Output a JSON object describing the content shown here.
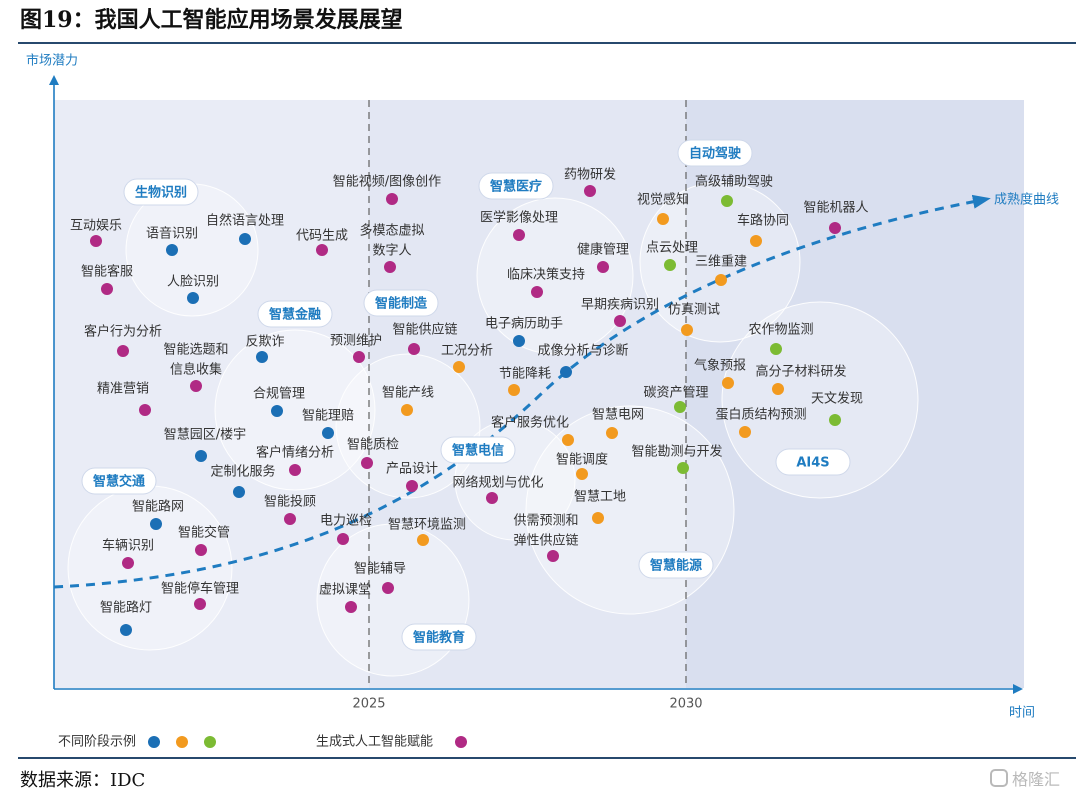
{
  "header": {
    "title": "图19：我国人工智能应用场景发展展望"
  },
  "footer": {
    "source": "数据来源：IDC",
    "watermark": "格隆汇"
  },
  "colors": {
    "blue": "#1b6fb5",
    "orange": "#f29a1f",
    "green": "#7cbb33",
    "magenta": "#b02a84",
    "accent": "#1f7cc1",
    "zone1": "#e9ecf6",
    "zone2": "#e3e7f3",
    "zone3": "#d9dfef"
  },
  "chart_data": {
    "type": "scatter",
    "ylabel": "市场潜力",
    "xlabel": "时间",
    "x_ticks": [
      "2025",
      "2030"
    ],
    "curve_label": "成熟度曲线",
    "legend": {
      "stages_label": "不同阶段示例",
      "genai_label": "生成式人工智能赋能"
    },
    "clusters": [
      "生物识别",
      "智慧金融",
      "智慧交通",
      "智能制造",
      "智能教育",
      "智慧医疗",
      "智慧电信",
      "自动驾驶",
      "智慧能源",
      "AI4S"
    ],
    "points": [
      {
        "label": "互动娱乐",
        "cat": "magenta"
      },
      {
        "label": "智能客服",
        "cat": "magenta"
      },
      {
        "label": "语音识别",
        "cat": "blue"
      },
      {
        "label": "自然语言处理",
        "cat": "blue"
      },
      {
        "label": "人脸识别",
        "cat": "blue"
      },
      {
        "label": "代码生成",
        "cat": "magenta"
      },
      {
        "label": "智能视频/图像创作",
        "cat": "magenta"
      },
      {
        "label": "多模态虚拟数字人",
        "cat": "magenta"
      },
      {
        "label": "客户行为分析",
        "cat": "magenta"
      },
      {
        "label": "智能选题和信息收集",
        "cat": "magenta"
      },
      {
        "label": "反欺诈",
        "cat": "blue"
      },
      {
        "label": "精准营销",
        "cat": "magenta"
      },
      {
        "label": "合规管理",
        "cat": "blue"
      },
      {
        "label": "智能理赔",
        "cat": "blue"
      },
      {
        "label": "智慧园区/楼宇",
        "cat": "blue"
      },
      {
        "label": "定制化服务",
        "cat": "blue"
      },
      {
        "label": "客户情绪分析",
        "cat": "magenta"
      },
      {
        "label": "智能投顾",
        "cat": "magenta"
      },
      {
        "label": "智能路网",
        "cat": "blue"
      },
      {
        "label": "智能交管",
        "cat": "magenta"
      },
      {
        "label": "车辆识别",
        "cat": "magenta"
      },
      {
        "label": "智能停车管理",
        "cat": "magenta"
      },
      {
        "label": "智能路灯",
        "cat": "blue"
      },
      {
        "label": "预测维护",
        "cat": "magenta"
      },
      {
        "label": "智能供应链",
        "cat": "magenta"
      },
      {
        "label": "工况分析",
        "cat": "orange"
      },
      {
        "label": "智能产线",
        "cat": "orange"
      },
      {
        "label": "智能质检",
        "cat": "magenta"
      },
      {
        "label": "产品设计",
        "cat": "magenta"
      },
      {
        "label": "电力巡检",
        "cat": "magenta"
      },
      {
        "label": "智慧环境监测",
        "cat": "orange"
      },
      {
        "label": "智能辅导",
        "cat": "magenta"
      },
      {
        "label": "虚拟课堂",
        "cat": "magenta"
      },
      {
        "label": "药物研发",
        "cat": "magenta"
      },
      {
        "label": "医学影像处理",
        "cat": "magenta"
      },
      {
        "label": "健康管理",
        "cat": "magenta"
      },
      {
        "label": "临床决策支持",
        "cat": "magenta"
      },
      {
        "label": "早期疾病识别",
        "cat": "magenta"
      },
      {
        "label": "电子病历助手",
        "cat": "blue"
      },
      {
        "label": "成像分析与诊断",
        "cat": "blue"
      },
      {
        "label": "节能降耗",
        "cat": "orange"
      },
      {
        "label": "客户服务优化",
        "cat": "orange"
      },
      {
        "label": "智慧电网",
        "cat": "orange"
      },
      {
        "label": "智能调度",
        "cat": "orange"
      },
      {
        "label": "网络规划与优化",
        "cat": "magenta"
      },
      {
        "label": "智慧工地",
        "cat": "orange"
      },
      {
        "label": "供需预测和弹性供应链",
        "cat": "magenta"
      },
      {
        "label": "视觉感知",
        "cat": "orange"
      },
      {
        "label": "高级辅助驾驶",
        "cat": "green"
      },
      {
        "label": "车路协同",
        "cat": "orange"
      },
      {
        "label": "点云处理",
        "cat": "green"
      },
      {
        "label": "三维重建",
        "cat": "orange"
      },
      {
        "label": "仿真测试",
        "cat": "orange"
      },
      {
        "label": "智能机器人",
        "cat": "magenta"
      },
      {
        "label": "农作物监测",
        "cat": "green"
      },
      {
        "label": "气象预报",
        "cat": "orange"
      },
      {
        "label": "高分子材料研发",
        "cat": "orange"
      },
      {
        "label": "碳资产管理",
        "cat": "green"
      },
      {
        "label": "天文发现",
        "cat": "green"
      },
      {
        "label": "蛋白质结构预测",
        "cat": "orange"
      },
      {
        "label": "智能勘测与开发",
        "cat": "green"
      }
    ]
  }
}
